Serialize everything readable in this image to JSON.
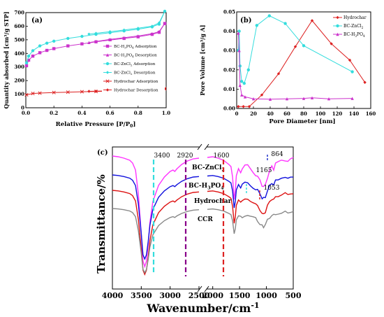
{
  "chart_data": [
    {
      "type": "line",
      "panel_label": "(a)",
      "xlabel": "Relative Pressure [P/P",
      "xlabel_sub": "0",
      "xlabel_end": "]",
      "ylabel": "Quantity absorbed [cm³/g STP]",
      "xlim": [
        0,
        1.0
      ],
      "ylim": [
        0,
        700
      ],
      "xticks": [
        "0.0",
        "0.2",
        "0.4",
        "0.6",
        "0.8",
        "1.0"
      ],
      "yticks": [
        "0",
        "100",
        "200",
        "300",
        "400",
        "500",
        "600",
        "700"
      ],
      "legend": "right",
      "colors": {
        "BC-H3PO4": "#cc33cc",
        "BC-ZnCl2": "#33dddd",
        "Hydrochar": "#dd2222"
      },
      "series": [
        {
          "name": "BC-H₃PO₄ Adsorption",
          "color": "#cc33cc",
          "marker": "square",
          "x": [
            0.005,
            0.02,
            0.05,
            0.1,
            0.15,
            0.2,
            0.3,
            0.4,
            0.5,
            0.6,
            0.7,
            0.8,
            0.9,
            0.95,
            0.99
          ],
          "y": [
            310,
            350,
            380,
            405,
            422,
            435,
            455,
            470,
            485,
            498,
            510,
            522,
            540,
            555,
            620
          ]
        },
        {
          "name": "BC-H₃PO₄ Desorption",
          "color": "#cc33cc",
          "marker": "triangle",
          "x": [
            0.99,
            0.95,
            0.9,
            0.8,
            0.7,
            0.6,
            0.5,
            0.45
          ],
          "y": [
            620,
            560,
            545,
            528,
            515,
            503,
            488,
            480
          ]
        },
        {
          "name": "BC-ZnCl₂ Adsorption",
          "color": "#33dddd",
          "marker": "circle",
          "x": [
            0.005,
            0.02,
            0.05,
            0.1,
            0.15,
            0.2,
            0.3,
            0.4,
            0.5,
            0.6,
            0.7,
            0.8,
            0.9,
            0.95,
            0.99
          ],
          "y": [
            330,
            380,
            420,
            455,
            475,
            490,
            510,
            525,
            540,
            552,
            565,
            578,
            595,
            615,
            710
          ]
        },
        {
          "name": "BC-ZnCl₂ Desorption",
          "color": "#33dddd",
          "marker": "diamond",
          "x": [
            0.99,
            0.95,
            0.9,
            0.8,
            0.7,
            0.6,
            0.5,
            0.45
          ],
          "y": [
            710,
            625,
            600,
            585,
            572,
            560,
            548,
            542
          ]
        },
        {
          "name": "Hydrochar Adsorption",
          "color": "#dd2222",
          "marker": "x",
          "x": [
            0.005,
            0.05,
            0.1,
            0.2,
            0.3,
            0.4,
            0.5,
            0.6,
            0.7,
            0.8,
            0.9,
            0.95,
            0.99
          ],
          "y": [
            95,
            105,
            108,
            112,
            115,
            118,
            120,
            122,
            124,
            127,
            130,
            134,
            140
          ]
        },
        {
          "name": "Hydrochar Desorption",
          "color": "#dd2222",
          "marker": "diamond",
          "x": [
            0.99,
            0.95,
            0.9,
            0.8,
            0.7,
            0.6,
            0.5,
            0.45
          ],
          "y": [
            140,
            136,
            132,
            129,
            126,
            124,
            122,
            121
          ]
        }
      ]
    },
    {
      "type": "line",
      "panel_label": "(b)",
      "xlabel": "Pore Diameter [nm]",
      "ylabel": "Pore Volume [cm³/g A]",
      "xlim": [
        0,
        160
      ],
      "ylim": [
        0,
        0.05
      ],
      "xticks": [
        "0",
        "20",
        "40",
        "60",
        "80",
        "100",
        "120",
        "140",
        "160"
      ],
      "yticks": [
        "0.00",
        "0.01",
        "0.02",
        "0.03",
        "0.04",
        "0.05"
      ],
      "legend": "top-right",
      "series": [
        {
          "name": "Hydrochar",
          "color": "#dd2222",
          "marker": "diamond",
          "x": [
            2,
            8,
            15,
            30,
            50,
            70,
            90,
            113,
            135,
            153
          ],
          "y": [
            0.001,
            0.001,
            0.001,
            0.007,
            0.018,
            0.032,
            0.0455,
            0.0335,
            0.025,
            0.0135
          ]
        },
        {
          "name": "BC-ZnCl₂",
          "color": "#33dddd",
          "marker": "circle",
          "x": [
            2,
            3,
            4,
            6,
            9,
            14,
            24,
            39,
            58,
            80,
            138
          ],
          "y": [
            0.03,
            0.04,
            0.022,
            0.014,
            0.013,
            0.02,
            0.043,
            0.048,
            0.044,
            0.0325,
            0.019
          ]
        },
        {
          "name": "BC-H₃PO₄",
          "color": "#cc33cc",
          "marker": "triangle",
          "x": [
            2,
            3,
            4,
            6,
            10,
            20,
            40,
            60,
            80,
            90,
            110,
            138
          ],
          "y": [
            0.039,
            0.03,
            0.012,
            0.007,
            0.006,
            0.005,
            0.0048,
            0.005,
            0.0052,
            0.0055,
            0.005,
            0.0052
          ]
        }
      ]
    },
    {
      "type": "line",
      "panel_label": "(c)",
      "xlabel": "Wavenumber/cm",
      "xlabel_sup": "-1",
      "ylabel": "Transmittance/%",
      "xlim": [
        4000,
        500
      ],
      "axis_break": [
        2500,
        2100
      ],
      "xticks": [
        "4000",
        "3500",
        "3000",
        "2500",
        "2000",
        "1500",
        "1000",
        "500"
      ],
      "legend": "inline",
      "annotations": [
        {
          "label": "3400",
          "wavenumber": 3400,
          "color": "#33dddd"
        },
        {
          "label": "2920",
          "wavenumber": 2920,
          "color": "#880088"
        },
        {
          "label": "1600",
          "wavenumber": 1600,
          "color": "#dd2222"
        },
        {
          "label": "1165",
          "wavenumber": 1165,
          "color": "#33dddd"
        },
        {
          "label": "1053",
          "wavenumber": 1053,
          "color": "#dd2222"
        },
        {
          "label": "864",
          "wavenumber": 864,
          "color": "#2233cc"
        }
      ],
      "series": [
        {
          "name": "BC-ZnCl₂",
          "color": "#ff33ff"
        },
        {
          "name": "BC-H₃PO₄",
          "color": "#1111dd"
        },
        {
          "name": "Hydrochar",
          "color": "#dd1111"
        },
        {
          "name": "CCR",
          "color": "#888888"
        }
      ]
    }
  ]
}
